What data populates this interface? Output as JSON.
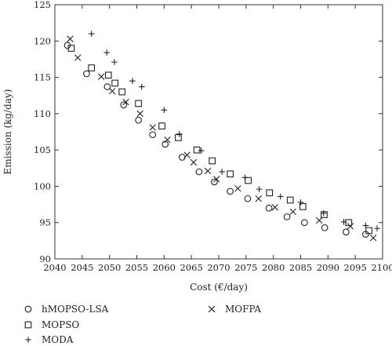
{
  "chart_data": {
    "type": "scatter",
    "xlabel": "Cost (€/day)",
    "ylabel": "Emission (kg/day)",
    "xlim": [
      2040,
      2100
    ],
    "ylim": [
      90,
      125
    ],
    "xticks": [
      2040,
      2045,
      2050,
      2055,
      2060,
      2065,
      2070,
      2075,
      2080,
      2085,
      2090,
      2095,
      2100
    ],
    "yticks": [
      90,
      95,
      100,
      105,
      110,
      115,
      120,
      125
    ],
    "legend_position": "bottom",
    "series": [
      {
        "name": "hMOPSO-LSA",
        "marker": "circle",
        "points": [
          [
            2042.3,
            119.4
          ],
          [
            2045.8,
            115.5
          ],
          [
            2049.6,
            113.7
          ],
          [
            2052.6,
            111.2
          ],
          [
            2055.3,
            109.1
          ],
          [
            2057.9,
            107.1
          ],
          [
            2060.2,
            105.8
          ],
          [
            2063.3,
            104.0
          ],
          [
            2066.4,
            102.0
          ],
          [
            2069.2,
            100.6
          ],
          [
            2072.1,
            99.3
          ],
          [
            2075.3,
            98.3
          ],
          [
            2079.2,
            97.0
          ],
          [
            2082.5,
            95.8
          ],
          [
            2085.7,
            95.0
          ],
          [
            2089.4,
            94.3
          ],
          [
            2093.3,
            93.7
          ],
          [
            2096.9,
            93.4
          ]
        ]
      },
      {
        "name": "MOPSO",
        "marker": "square",
        "points": [
          [
            2043.0,
            119.0
          ],
          [
            2046.7,
            116.3
          ],
          [
            2049.8,
            115.3
          ],
          [
            2051.0,
            114.2
          ],
          [
            2052.3,
            113.0
          ],
          [
            2055.3,
            111.4
          ],
          [
            2059.6,
            108.3
          ],
          [
            2062.6,
            106.7
          ],
          [
            2066.0,
            105.0
          ],
          [
            2068.8,
            103.5
          ],
          [
            2072.1,
            101.7
          ],
          [
            2075.4,
            100.8
          ],
          [
            2079.3,
            99.1
          ],
          [
            2083.1,
            98.1
          ],
          [
            2085.4,
            97.2
          ],
          [
            2089.3,
            96.1
          ],
          [
            2093.8,
            95.0
          ],
          [
            2097.5,
            93.9
          ]
        ]
      },
      {
        "name": "MODA",
        "marker": "plus",
        "points": [
          [
            2046.7,
            121.0
          ],
          [
            2049.5,
            118.4
          ],
          [
            2050.9,
            117.1
          ],
          [
            2054.2,
            114.5
          ],
          [
            2055.9,
            113.7
          ],
          [
            2060.0,
            110.5
          ],
          [
            2062.8,
            107.2
          ],
          [
            2066.8,
            104.9
          ],
          [
            2070.6,
            102.0
          ],
          [
            2074.8,
            101.2
          ],
          [
            2077.4,
            99.6
          ],
          [
            2081.3,
            98.6
          ],
          [
            2085.0,
            97.8
          ],
          [
            2089.2,
            96.3
          ],
          [
            2092.9,
            95.1
          ],
          [
            2096.9,
            94.6
          ],
          [
            2099.0,
            94.2
          ]
        ]
      },
      {
        "name": "MOFPA",
        "marker": "x",
        "points": [
          [
            2042.8,
            120.3
          ],
          [
            2044.2,
            117.7
          ],
          [
            2048.5,
            115.1
          ],
          [
            2050.5,
            113.1
          ],
          [
            2053.0,
            111.6
          ],
          [
            2055.6,
            110.0
          ],
          [
            2057.9,
            108.1
          ],
          [
            2060.6,
            106.4
          ],
          [
            2064.2,
            104.3
          ],
          [
            2065.4,
            103.3
          ],
          [
            2068.0,
            102.1
          ],
          [
            2069.6,
            101.0
          ],
          [
            2073.5,
            99.7
          ],
          [
            2077.3,
            98.3
          ],
          [
            2080.3,
            97.1
          ],
          [
            2083.6,
            96.5
          ],
          [
            2088.4,
            95.3
          ],
          [
            2094.1,
            94.5
          ],
          [
            2098.3,
            92.9
          ]
        ]
      }
    ]
  }
}
